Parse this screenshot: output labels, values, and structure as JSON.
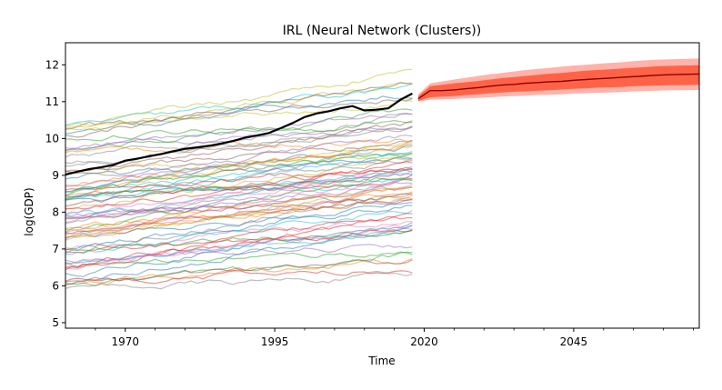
{
  "chart_data": {
    "type": "line",
    "title": "IRL (Neural Network (Clusters))",
    "xlabel": "Time",
    "ylabel": "log(GDP)",
    "xlim": [
      1960,
      2066
    ],
    "ylim": [
      4.85,
      12.6
    ],
    "x_ticks": [
      1970,
      1995,
      2020,
      2045
    ],
    "y_ticks": [
      5,
      6,
      7,
      8,
      9,
      10,
      11,
      12
    ],
    "grid": false,
    "legend": "none",
    "historical": {
      "x_start": 1960,
      "x_end": 2018,
      "background_series_count": 75,
      "background_range": [
        5.7,
        11.4
      ],
      "background_colors": [
        "#1f77b4",
        "#ff7f0e",
        "#2ca02c",
        "#d62728",
        "#9467bd",
        "#8c564b",
        "#e377c2",
        "#7f7f7f",
        "#bcbd22",
        "#17becf"
      ],
      "highlight": {
        "color": "#000000",
        "x": [
          1960,
          1962,
          1964,
          1966,
          1968,
          1970,
          1972,
          1974,
          1976,
          1978,
          1980,
          1982,
          1984,
          1986,
          1988,
          1990,
          1992,
          1994,
          1996,
          1998,
          2000,
          2002,
          2004,
          2006,
          2008,
          2010,
          2012,
          2014,
          2016,
          2018
        ],
        "y": [
          9.02,
          9.1,
          9.17,
          9.22,
          9.28,
          9.4,
          9.45,
          9.52,
          9.58,
          9.65,
          9.72,
          9.76,
          9.8,
          9.86,
          9.93,
          10.02,
          10.08,
          10.15,
          10.28,
          10.42,
          10.58,
          10.68,
          10.74,
          10.82,
          10.88,
          10.76,
          10.78,
          10.82,
          11.05,
          11.22
        ]
      }
    },
    "forecast": {
      "x_start": 2019,
      "x_end": 2066,
      "median_color": "#8b0000",
      "inner_band_color": "#ff6347",
      "outer_band_color": "#ffb3ab",
      "x": [
        2019,
        2021,
        2023,
        2025,
        2027,
        2029,
        2031,
        2033,
        2035,
        2037,
        2039,
        2041,
        2043,
        2045,
        2047,
        2049,
        2051,
        2053,
        2055,
        2057,
        2059,
        2061,
        2063,
        2066
      ],
      "median": [
        11.08,
        11.3,
        11.3,
        11.32,
        11.35,
        11.38,
        11.42,
        11.45,
        11.47,
        11.5,
        11.52,
        11.54,
        11.55,
        11.58,
        11.6,
        11.62,
        11.64,
        11.66,
        11.68,
        11.7,
        11.72,
        11.73,
        11.74,
        11.75
      ],
      "inner_low": [
        11.02,
        11.12,
        11.14,
        11.15,
        11.18,
        11.2,
        11.23,
        11.25,
        11.27,
        11.28,
        11.3,
        11.31,
        11.33,
        11.35,
        11.36,
        11.38,
        11.39,
        11.4,
        11.42,
        11.43,
        11.44,
        11.45,
        11.45,
        11.46
      ],
      "inner_high": [
        11.15,
        11.42,
        11.46,
        11.5,
        11.53,
        11.56,
        11.6,
        11.64,
        11.67,
        11.7,
        11.73,
        11.76,
        11.78,
        11.81,
        11.84,
        11.86,
        11.88,
        11.9,
        11.92,
        11.94,
        11.96,
        11.97,
        11.98,
        11.99
      ],
      "outer_low": [
        11.0,
        11.05,
        11.06,
        11.07,
        11.09,
        11.1,
        11.12,
        11.14,
        11.15,
        11.16,
        11.18,
        11.19,
        11.2,
        11.22,
        11.23,
        11.24,
        11.25,
        11.26,
        11.28,
        11.29,
        11.3,
        11.31,
        11.31,
        11.32
      ],
      "outer_high": [
        11.2,
        11.5,
        11.55,
        11.6,
        11.65,
        11.7,
        11.74,
        11.78,
        11.82,
        11.86,
        11.89,
        11.92,
        11.95,
        11.98,
        12.0,
        12.03,
        12.05,
        12.07,
        12.1,
        12.12,
        12.14,
        12.15,
        12.16,
        12.17
      ]
    }
  }
}
